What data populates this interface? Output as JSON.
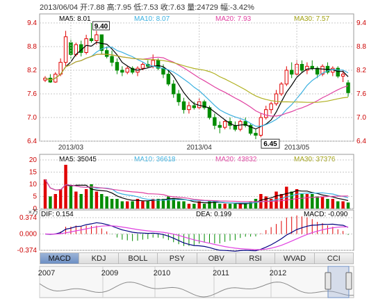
{
  "header": {
    "date": "2013/06/04",
    "open": "开:7.88",
    "high": "高:7.95",
    "low": "低:7.53",
    "close": "收:7.63",
    "volume": "量:24729",
    "change": "幅:-3.42%"
  },
  "ma_price": {
    "ma5": "MA5: 8.01",
    "ma10": "MA10: 8.07",
    "ma20": "MA20: 7.93",
    "ma30": "MA30: 7.57"
  },
  "ma_volume": {
    "ma5": "MA5: 35045",
    "ma10": "MA10: 36618",
    "ma20": "MA20: 43832",
    "ma30": "MA30: 37376"
  },
  "macd": {
    "dif": "DIF: 0.154",
    "dea": "DEA: 0.199",
    "macd": "MACD: -0.090"
  },
  "price_axis": [
    "9.4",
    "8.8",
    "8.2",
    "7.6",
    "7.0",
    "6.4"
  ],
  "volume_axis": [
    "20",
    "15",
    "10",
    "5",
    "0"
  ],
  "volume_unit": "×万",
  "macd_axis": [
    "0.374",
    "0.000",
    "-0.374"
  ],
  "date_labels": [
    "2013/03",
    "2013/04",
    "2013/05"
  ],
  "annotations": {
    "high": "9.40",
    "low": "6.45"
  },
  "tabs": [
    "MACD",
    "KDJ",
    "BOLL",
    "PSY",
    "OBV",
    "RSI",
    "WVAD",
    "CCI"
  ],
  "active_tab": "MACD",
  "overview_years": [
    "2007",
    "2009",
    "2010",
    "2011",
    "2012"
  ],
  "colors": {
    "up": "#e00000",
    "down": "#008c00",
    "ma5": "#000000",
    "ma10": "#3ab0e0",
    "ma20": "#e040a0",
    "ma30": "#b0b020",
    "grid": "#c8c8c8",
    "dif": "#000080",
    "dea": "#e040e0"
  },
  "chart_data": {
    "type": "candlestick",
    "period": "2013/02 – 2013/06/04",
    "price_ylim": [
      6.4,
      9.4
    ],
    "volume_ylim": [
      0,
      20
    ],
    "macd_ylim": [
      -0.374,
      0.374
    ],
    "ohlc": [
      [
        7.95,
        8.05,
        7.9,
        8.0
      ],
      [
        8.0,
        8.1,
        7.88,
        7.9
      ],
      [
        7.9,
        8.15,
        7.88,
        8.1
      ],
      [
        8.1,
        8.5,
        8.05,
        8.4
      ],
      [
        8.4,
        9.2,
        8.3,
        9.05
      ],
      [
        8.9,
        9.0,
        8.5,
        8.6
      ],
      [
        8.6,
        8.9,
        8.55,
        8.85
      ],
      [
        8.85,
        8.95,
        8.55,
        8.65
      ],
      [
        8.65,
        9.1,
        8.6,
        9.0
      ],
      [
        9.0,
        9.4,
        8.9,
        8.95
      ],
      [
        8.95,
        9.2,
        8.85,
        9.1
      ],
      [
        9.1,
        9.1,
        8.6,
        8.7
      ],
      [
        8.7,
        8.8,
        8.5,
        8.55
      ],
      [
        8.55,
        8.7,
        8.3,
        8.4
      ],
      [
        8.4,
        8.5,
        8.1,
        8.2
      ],
      [
        8.2,
        8.3,
        8.05,
        8.15
      ],
      [
        8.15,
        8.3,
        8.1,
        8.25
      ],
      [
        8.25,
        8.3,
        8.1,
        8.15
      ],
      [
        8.15,
        8.3,
        8.05,
        8.25
      ],
      [
        8.25,
        8.4,
        8.2,
        8.35
      ],
      [
        8.35,
        8.45,
        8.25,
        8.3
      ],
      [
        8.3,
        8.6,
        8.25,
        8.45
      ],
      [
        8.45,
        8.5,
        8.2,
        8.25
      ],
      [
        8.25,
        8.35,
        8.0,
        8.1
      ],
      [
        8.1,
        8.2,
        7.8,
        7.85
      ],
      [
        7.85,
        7.95,
        7.5,
        7.6
      ],
      [
        7.6,
        7.7,
        7.3,
        7.4
      ],
      [
        7.4,
        7.5,
        7.1,
        7.2
      ],
      [
        7.2,
        7.4,
        7.1,
        7.3
      ],
      [
        7.3,
        7.4,
        7.2,
        7.25
      ],
      [
        7.25,
        7.5,
        7.2,
        7.4
      ],
      [
        7.4,
        7.45,
        7.2,
        7.25
      ],
      [
        7.25,
        7.3,
        6.95,
        7.0
      ],
      [
        7.0,
        7.1,
        6.7,
        6.8
      ],
      [
        6.8,
        6.9,
        6.6,
        6.75
      ],
      [
        6.75,
        6.95,
        6.7,
        6.9
      ],
      [
        6.9,
        7.0,
        6.7,
        6.8
      ],
      [
        6.8,
        6.9,
        6.65,
        6.7
      ],
      [
        6.7,
        6.95,
        6.65,
        6.9
      ],
      [
        6.9,
        7.0,
        6.75,
        6.8
      ],
      [
        6.8,
        6.85,
        6.55,
        6.6
      ],
      [
        6.6,
        6.7,
        6.45,
        6.55
      ],
      [
        6.55,
        7.1,
        6.5,
        7.0
      ],
      [
        7.0,
        7.3,
        6.95,
        7.2
      ],
      [
        7.2,
        7.4,
        7.1,
        7.35
      ],
      [
        7.35,
        7.7,
        7.3,
        7.6
      ],
      [
        7.6,
        7.9,
        7.55,
        7.85
      ],
      [
        7.85,
        8.3,
        7.8,
        8.2
      ],
      [
        8.2,
        8.4,
        8.0,
        8.1
      ],
      [
        8.1,
        8.45,
        8.05,
        8.35
      ],
      [
        8.35,
        8.45,
        8.15,
        8.2
      ],
      [
        8.2,
        8.4,
        8.1,
        8.3
      ],
      [
        8.3,
        8.45,
        8.2,
        8.25
      ],
      [
        8.25,
        8.3,
        8.0,
        8.1
      ],
      [
        8.1,
        8.35,
        8.05,
        8.3
      ],
      [
        8.3,
        8.4,
        8.1,
        8.15
      ],
      [
        8.15,
        8.3,
        8.05,
        8.25
      ],
      [
        8.25,
        8.3,
        8.0,
        8.05
      ],
      [
        8.05,
        8.2,
        7.9,
        8.1
      ],
      [
        7.88,
        7.95,
        7.53,
        7.63
      ]
    ],
    "volume": [
      12,
      5,
      6,
      8,
      18,
      9,
      7,
      6,
      8,
      10,
      7,
      6,
      5,
      4,
      4,
      3,
      3,
      3,
      4,
      3,
      3,
      4,
      4,
      4,
      5,
      4,
      3,
      3,
      2,
      2,
      3,
      2,
      3,
      3,
      2,
      2,
      2,
      2,
      2,
      2,
      3,
      4,
      6,
      5,
      4,
      7,
      6,
      9,
      7,
      8,
      6,
      6,
      6,
      5,
      5,
      4,
      4,
      3,
      3,
      2.5
    ]
  }
}
